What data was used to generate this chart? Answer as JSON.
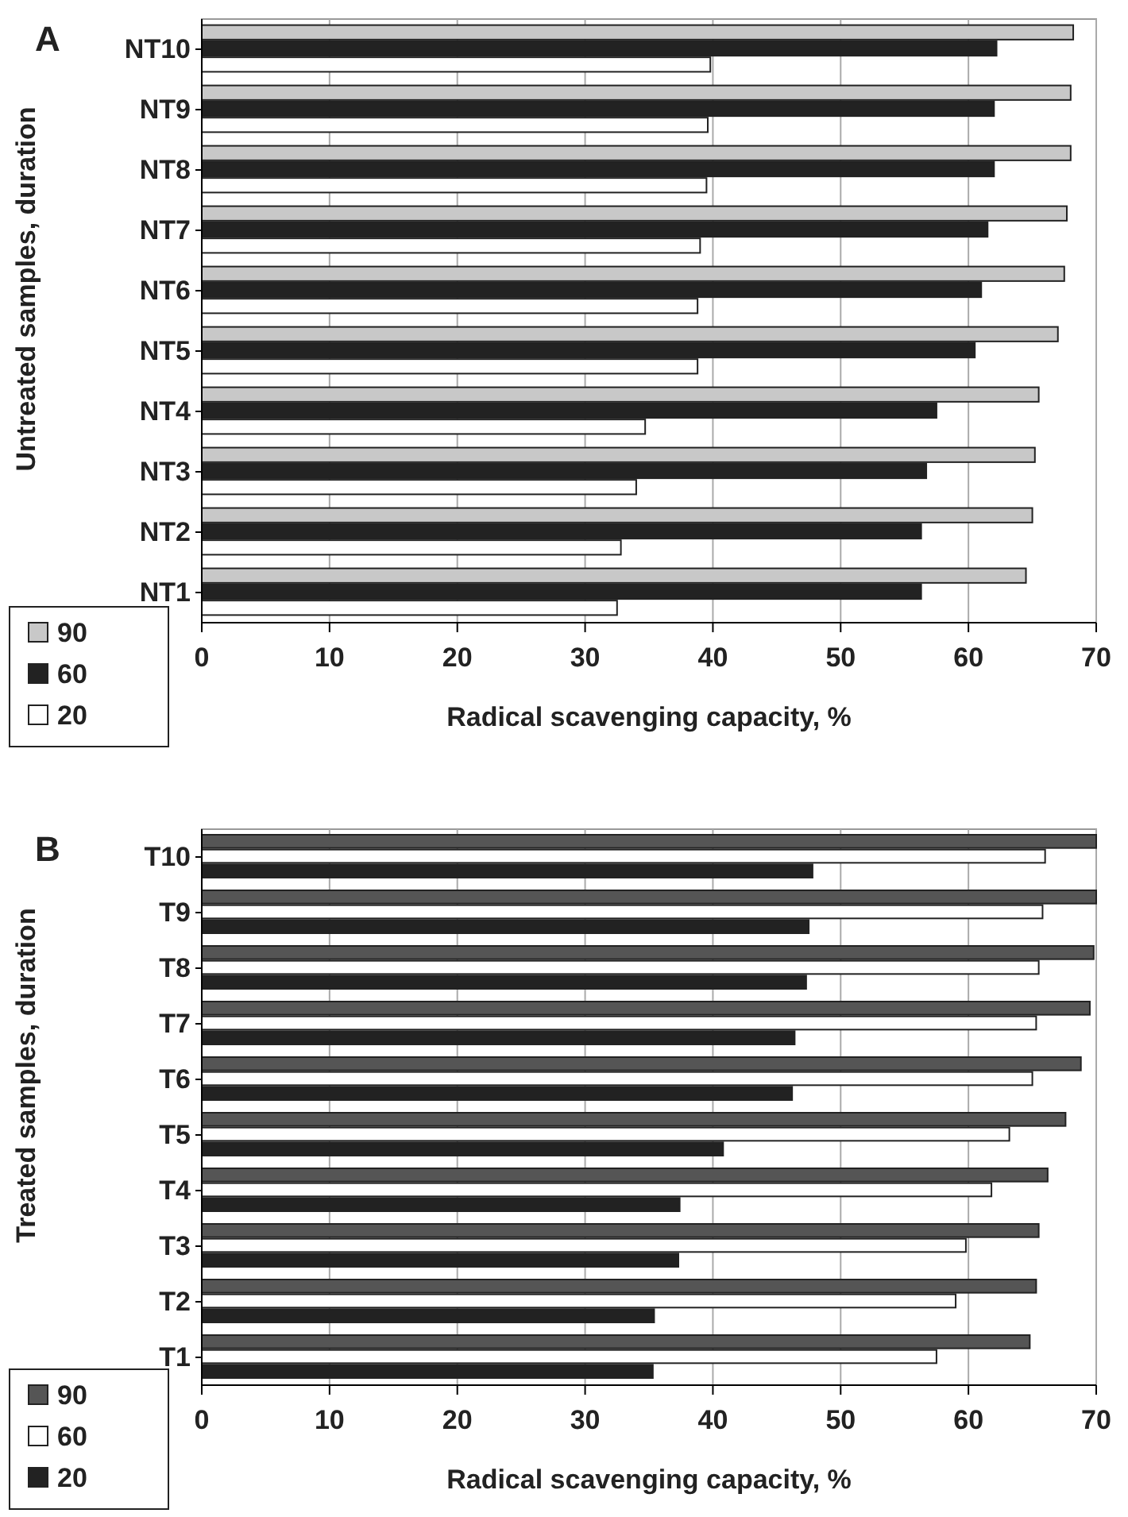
{
  "chart_data": [
    {
      "type": "bar",
      "title": "A",
      "orientation": "horizontal",
      "xlabel": "Radical scavenging capacity, %",
      "ylabel": "Untreated samples, duration",
      "categories": [
        "NT10",
        "NT9",
        "NT8",
        "NT7",
        "NT6",
        "NT5",
        "NT4",
        "NT3",
        "NT2",
        "NT1"
      ],
      "xlim": [
        0,
        70
      ],
      "xticks": [
        0,
        10,
        20,
        30,
        40,
        50,
        60,
        70
      ],
      "grid": "x",
      "legend": "bottom left",
      "series": [
        {
          "name": "90",
          "color": "#c8c8c8",
          "values": [
            68.2,
            68,
            68,
            67.7,
            67.5,
            67,
            65.5,
            65.2,
            65,
            64.5
          ]
        },
        {
          "name": "60",
          "color": "#222222",
          "values": [
            62.2,
            62,
            62,
            61.5,
            61,
            60.5,
            57.5,
            56.7,
            56.3,
            56.3
          ]
        },
        {
          "name": "20",
          "color": "#ffffff",
          "values": [
            39.8,
            39.6,
            39.5,
            39,
            38.8,
            38.8,
            34.7,
            34,
            32.8,
            32.5
          ]
        }
      ]
    },
    {
      "type": "bar",
      "title": "B",
      "orientation": "horizontal",
      "xlabel": "Radical scavenging capacity, %",
      "ylabel": "Treated samples, duration",
      "categories": [
        "T10",
        "T9",
        "T8",
        "T7",
        "T6",
        "T5",
        "T4",
        "T3",
        "T2",
        "T1"
      ],
      "xlim": [
        0,
        70
      ],
      "xticks": [
        0,
        10,
        20,
        30,
        40,
        50,
        60,
        70
      ],
      "grid": "x",
      "legend": "bottom left",
      "series": [
        {
          "name": "90",
          "color": "#555555",
          "values": [
            70,
            70,
            69.8,
            69.5,
            68.8,
            67.6,
            66.2,
            65.5,
            65.3,
            64.8
          ]
        },
        {
          "name": "60",
          "color": "#ffffff",
          "values": [
            66,
            65.8,
            65.5,
            65.3,
            65,
            63.2,
            61.8,
            59.8,
            59,
            57.5
          ]
        },
        {
          "name": "20",
          "color": "#222222",
          "values": [
            47.8,
            47.5,
            47.3,
            46.4,
            46.2,
            40.8,
            37.4,
            37.3,
            35.4,
            35.3
          ]
        }
      ]
    }
  ]
}
